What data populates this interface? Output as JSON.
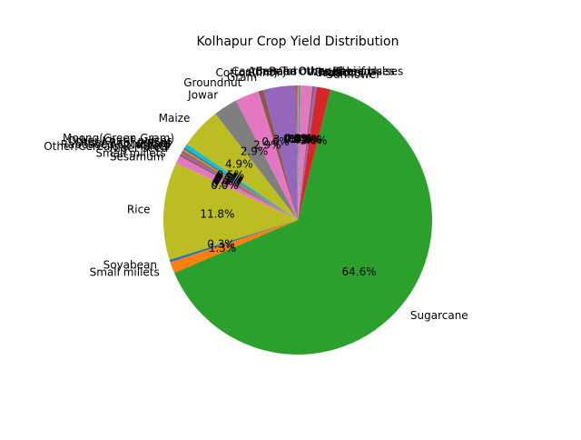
{
  "chart_data": {
    "type": "pie",
    "title": "Kolhapur Crop Yield Distribution",
    "start_angle_deg": 90,
    "counterclock": true,
    "autopct_format": "{:.1f}%",
    "slices": [
      {
        "label": "Arhar/Tur",
        "value": 0.05,
        "color": "#1f77b4"
      },
      {
        "label": "Bajra",
        "value": 0.03,
        "color": "#ff7f0e"
      },
      {
        "label": "Banana",
        "value": 0.02,
        "color": "#2ca02c"
      },
      {
        "label": "Castor seed",
        "value": 0.1,
        "color": "#d62728"
      },
      {
        "label": "Cotton(lint)",
        "value": 3.8,
        "color": "#9467bd"
      },
      {
        "label": "Gram",
        "value": 0.6,
        "color": "#8c564b"
      },
      {
        "label": "Groundnut",
        "value": 2.8,
        "color": "#e377c2"
      },
      {
        "label": "Jowar",
        "value": 2.8,
        "color": "#7f7f7f"
      },
      {
        "label": "Maize",
        "value": 4.8,
        "color": "#bcbd22"
      },
      {
        "label": "Moong(Green Gram)",
        "value": 0.5,
        "color": "#17becf"
      },
      {
        "label": "Other Kharif pulses",
        "value": 0.2,
        "color": "#1f77b4"
      },
      {
        "label": "Other Rabi pulses",
        "value": 0.2,
        "color": "#ff7f0e"
      },
      {
        "label": "Ragi",
        "value": 0.1,
        "color": "#2ca02c"
      },
      {
        "label": "Rapeseed &Mustard",
        "value": 0.1,
        "color": "#d62728"
      },
      {
        "label": "Other Cereals & Millets",
        "value": 0.3,
        "color": "#9467bd"
      },
      {
        "label": "Niger seed",
        "value": 0.2,
        "color": "#8c564b"
      },
      {
        "label": "Small millets",
        "value": 0.9,
        "color": "#e377c2"
      },
      {
        "label": "Sesamum",
        "value": 0.0,
        "color": "#7f7f7f"
      },
      {
        "label": "Rice",
        "value": 11.4,
        "color": "#bcbd22"
      },
      {
        "label": "Soyabean",
        "value": 0.3,
        "color": "#1f77b4"
      },
      {
        "label": "Small millets",
        "value": 1.3,
        "color": "#ff7f0e"
      },
      {
        "label": "Sugarcane",
        "value": 62.7,
        "color": "#2ca02c"
      },
      {
        "label": "Sunflower",
        "value": 1.6,
        "color": "#d62728"
      },
      {
        "label": "Tobacco",
        "value": 0.3,
        "color": "#9467bd"
      },
      {
        "label": "Urad",
        "value": 0.2,
        "color": "#8c564b"
      },
      {
        "label": "Wheat",
        "value": 1.4,
        "color": "#e377c2"
      },
      {
        "label": "other oilseeds",
        "value": 0.2,
        "color": "#7f7f7f"
      },
      {
        "label": "Other Kharif pulses",
        "value": 0.05,
        "color": "#bcbd22"
      },
      {
        "label": "Other Rabi pulses",
        "value": 0.05,
        "color": "#17becf"
      }
    ]
  }
}
